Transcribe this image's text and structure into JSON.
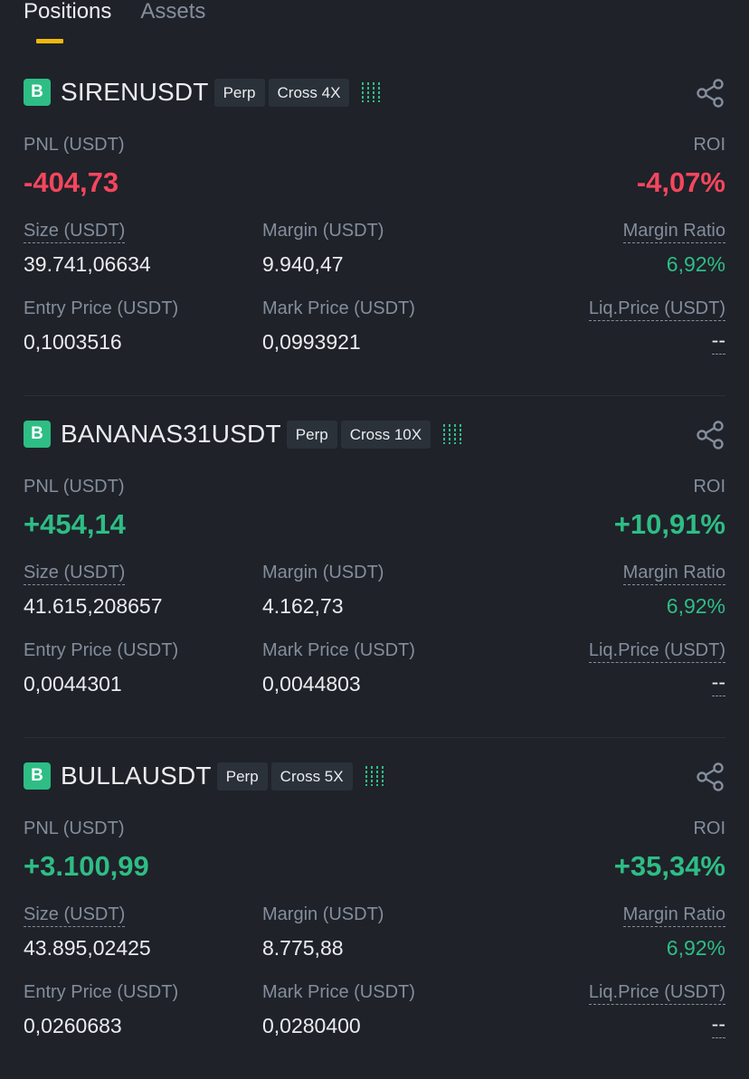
{
  "tabs": [
    {
      "label": "Positions",
      "active": true
    },
    {
      "label": "Assets",
      "active": false
    }
  ],
  "labels": {
    "pnl": "PNL (USDT)",
    "roi": "ROI",
    "size": "Size (USDT)",
    "margin": "Margin (USDT)",
    "margin_ratio": "Margin Ratio",
    "entry_price": "Entry Price (USDT)",
    "mark_price": "Mark Price (USDT)",
    "liq_price": "Liq.Price (USDT)"
  },
  "positions": [
    {
      "badge": "B",
      "symbol": "SIRENUSDT",
      "type": "Perp",
      "leverage": "Cross 4X",
      "pnl": "-404,73",
      "pnl_color": "#f6465d",
      "roi": "-4,07%",
      "size": "39.741,06634",
      "margin": "9.940,47",
      "margin_ratio": "6,92%",
      "entry_price": "0,1003516",
      "mark_price": "0,0993921",
      "liq_price": "--"
    },
    {
      "badge": "B",
      "symbol": "BANANAS31USDT",
      "type": "Perp",
      "leverage": "Cross 10X",
      "pnl": "+454,14",
      "pnl_color": "#2ebd85",
      "roi": "+10,91%",
      "size": "41.615,208657",
      "margin": "4.162,73",
      "margin_ratio": "6,92%",
      "entry_price": "0,0044301",
      "mark_price": "0,0044803",
      "liq_price": "--"
    },
    {
      "badge": "B",
      "symbol": "BULLAUSDT",
      "type": "Perp",
      "leverage": "Cross 5X",
      "pnl": "+3.100,99",
      "pnl_color": "#2ebd85",
      "roi": "+35,34%",
      "size": "43.895,02425",
      "margin": "8.775,88",
      "margin_ratio": "6,92%",
      "entry_price": "0,0260683",
      "mark_price": "0,0280400",
      "liq_price": "--"
    }
  ],
  "colors": {
    "background": "#1f2229",
    "accent": "#f0b90b",
    "positive": "#2ebd85",
    "negative": "#f6465d",
    "muted": "#848e9c"
  }
}
